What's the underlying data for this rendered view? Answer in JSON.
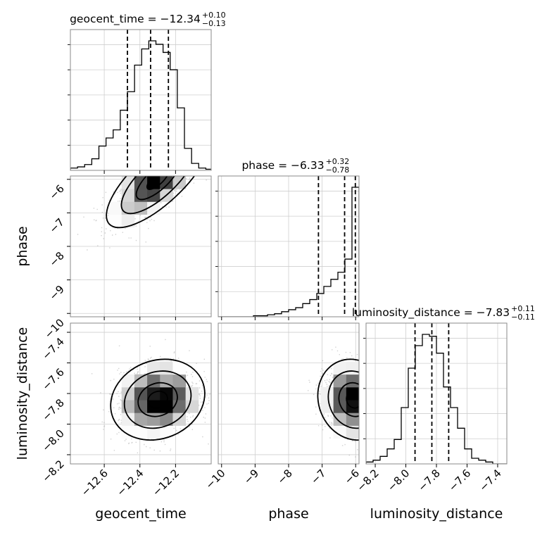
{
  "chart_data": {
    "type": "corner",
    "parameters": [
      {
        "name": "geocent_time",
        "title": "geocent_time = −12.34",
        "sup": "+0.10",
        "sub": "−0.13",
        "median": -12.34,
        "q_low": -12.47,
        "q_high": -12.24,
        "range": [
          -12.79,
          -12.0
        ],
        "ticks": [
          -12.6,
          -12.4,
          -12.2
        ],
        "tick_labels": [
          "−12.6",
          "−12.4",
          "−12.2"
        ],
        "hist_edges": [
          -12.79,
          -12.75,
          -12.71,
          -12.67,
          -12.63,
          -12.59,
          -12.55,
          -12.51,
          -12.47,
          -12.43,
          -12.39,
          -12.35,
          -12.31,
          -12.27,
          -12.23,
          -12.19,
          -12.15,
          -12.11,
          -12.07,
          -12.03,
          -11.99
        ],
        "hist_values": [
          2,
          3,
          5,
          10,
          21,
          28,
          35,
          52,
          68,
          91,
          105,
          112,
          109,
          102,
          87,
          54,
          19,
          6,
          2,
          1
        ]
      },
      {
        "name": "phase",
        "title": "phase = −6.33",
        "sup": "+0.32",
        "sub": "−0.78",
        "median": -6.33,
        "q_low": -7.11,
        "q_high": -6.01,
        "range": [
          -10.1,
          -5.9
        ],
        "ticks": [
          -10,
          -9,
          -8,
          -7,
          -6
        ],
        "tick_labels": [
          "−10",
          "−9",
          "−8",
          "−7",
          "−6"
        ],
        "hist_edges": [
          -10.1,
          -9.89,
          -9.68,
          -9.47,
          -9.26,
          -9.05,
          -8.84,
          -8.63,
          -8.42,
          -8.21,
          -8.0,
          -7.79,
          -7.58,
          -7.37,
          -7.16,
          -6.95,
          -6.74,
          -6.53,
          -6.32,
          -6.11,
          -5.9
        ],
        "hist_values": [
          0,
          0,
          0,
          0,
          0,
          1,
          1,
          2,
          3,
          5,
          7,
          9,
          13,
          17,
          23,
          30,
          37,
          44,
          57,
          128
        ]
      },
      {
        "name": "luminosity_distance",
        "title": "luminosity_distance = −7.83",
        "sup": "+0.11",
        "sub": "−0.11",
        "median": -7.83,
        "q_low": -7.94,
        "q_high": -7.72,
        "range": [
          -8.26,
          -7.34
        ],
        "ticks": [
          -8.2,
          -8.0,
          -7.8,
          -7.6,
          -7.4
        ],
        "tick_labels": [
          "−8.2",
          "−8.0",
          "−7.8",
          "−7.6",
          "−7.4"
        ],
        "hist_edges": [
          -8.26,
          -8.214,
          -8.168,
          -8.122,
          -8.076,
          -8.03,
          -7.984,
          -7.938,
          -7.892,
          -7.846,
          -7.8,
          -7.754,
          -7.708,
          -7.662,
          -7.616,
          -7.57,
          -7.524,
          -7.478,
          -7.432,
          -7.386,
          -7.34
        ],
        "hist_values": [
          1,
          2,
          4,
          8,
          13,
          30,
          51,
          63,
          69,
          68,
          59,
          41,
          30,
          19,
          8,
          3,
          2,
          1,
          0,
          0
        ]
      }
    ],
    "pairs": [
      {
        "x": 0,
        "y": 1,
        "x_center": -12.3,
        "y_center": -6.0,
        "sx": 0.12,
        "sy": 0.6,
        "corr": 0.75
      },
      {
        "x": 0,
        "y": 2,
        "x_center": -12.3,
        "y_center": -7.84,
        "sx": 0.11,
        "sy": 0.11,
        "corr": 0.15
      },
      {
        "x": 1,
        "y": 2,
        "x_center": -6.05,
        "y_center": -7.84,
        "sx": 0.45,
        "sy": 0.11,
        "corr": -0.1
      }
    ],
    "grid": true,
    "legend": "none"
  }
}
